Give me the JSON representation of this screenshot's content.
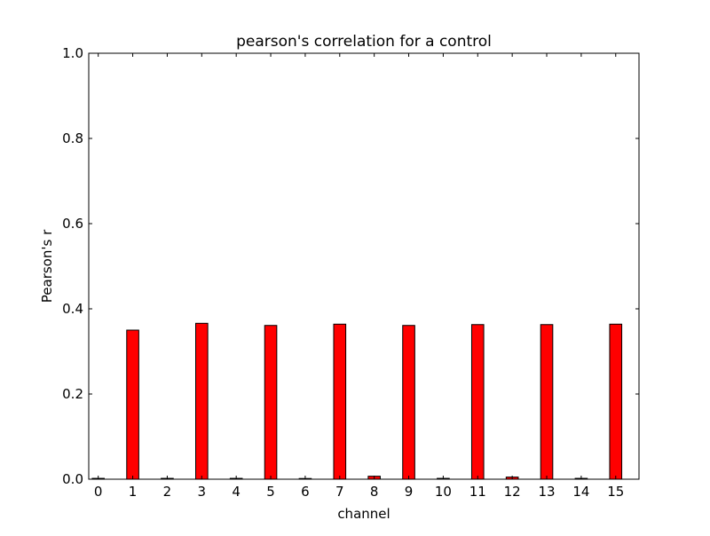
{
  "chart_data": {
    "type": "bar",
    "title": "pearson's correlation for a control",
    "xlabel": "channel",
    "ylabel": "Pearson's r",
    "categories": [
      "0",
      "1",
      "2",
      "3",
      "4",
      "5",
      "6",
      "7",
      "8",
      "9",
      "10",
      "11",
      "12",
      "13",
      "14",
      "15"
    ],
    "values": [
      0.002,
      0.35,
      0.002,
      0.366,
      0.002,
      0.361,
      0.0,
      0.364,
      0.007,
      0.361,
      0.002,
      0.363,
      0.005,
      0.363,
      0.002,
      0.364
    ],
    "ylim": [
      0,
      1.0
    ],
    "xlim": [
      -0.1,
      15.85
    ],
    "yticks": [
      0.0,
      0.2,
      0.4,
      0.6,
      0.8,
      1.0
    ],
    "ytick_labels": [
      "0.0",
      "0.2",
      "0.4",
      "0.6",
      "0.8",
      "1.0"
    ],
    "bar_color": "#ff0000",
    "bar_edge_color": "#000000",
    "grid": false,
    "legend": "none"
  }
}
